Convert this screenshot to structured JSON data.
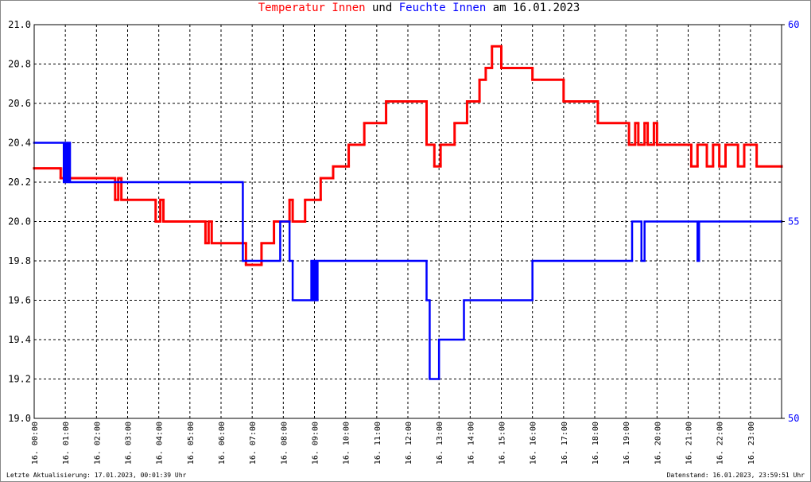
{
  "chart_data": {
    "type": "step-line",
    "title_connector": "und",
    "title_suffix": "am 16.01.2023",
    "update_note": "Letzte Aktualisierung: 17.01.2023, 00:01:39 Uhr",
    "data_note": "Datenstand: 16.01.2023, 23:59:51 Uhr",
    "grid": true,
    "xlim": [
      0,
      24
    ],
    "xticks": [
      {
        "value": 0,
        "label": "16. 00:00"
      },
      {
        "value": 1,
        "label": "16. 01:00"
      },
      {
        "value": 2,
        "label": "16. 02:00"
      },
      {
        "value": 3,
        "label": "16. 03:00"
      },
      {
        "value": 4,
        "label": "16. 04:00"
      },
      {
        "value": 5,
        "label": "16. 05:00"
      },
      {
        "value": 6,
        "label": "16. 06:00"
      },
      {
        "value": 7,
        "label": "16. 07:00"
      },
      {
        "value": 8,
        "label": "16. 08:00"
      },
      {
        "value": 9,
        "label": "16. 09:00"
      },
      {
        "value": 10,
        "label": "16. 10:00"
      },
      {
        "value": 11,
        "label": "16. 11:00"
      },
      {
        "value": 12,
        "label": "16. 12:00"
      },
      {
        "value": 13,
        "label": "16. 13:00"
      },
      {
        "value": 14,
        "label": "16. 14:00"
      },
      {
        "value": 15,
        "label": "16. 15:00"
      },
      {
        "value": 16,
        "label": "16. 16:00"
      },
      {
        "value": 17,
        "label": "16. 17:00"
      },
      {
        "value": 18,
        "label": "16. 18:00"
      },
      {
        "value": 19,
        "label": "16. 19:00"
      },
      {
        "value": 20,
        "label": "16. 20:00"
      },
      {
        "value": 21,
        "label": "16. 21:00"
      },
      {
        "value": 22,
        "label": "16. 22:00"
      },
      {
        "value": 23,
        "label": "16. 23:00"
      }
    ],
    "ylim": [
      19,
      21
    ],
    "yticks": [
      {
        "value": 19,
        "label": "19.0"
      },
      19.2,
      19.4,
      19.6,
      19.8,
      {
        "value": 20,
        "label": "20.0"
      },
      20.2,
      20.4,
      20.6,
      20.8,
      {
        "value": 21,
        "label": "21.0"
      }
    ],
    "y2lim": [
      50,
      60
    ],
    "y2ticks": [
      50,
      55,
      60
    ],
    "series": [
      {
        "name": "Temperatur Innen",
        "color": "#ff0000",
        "x": [
          0,
          0.85,
          0.95,
          1.05,
          2.6,
          2.7,
          2.8,
          3.9,
          4.05,
          4.15,
          5.5,
          5.6,
          5.7,
          6.8,
          7.3,
          7.7,
          8.2,
          8.3,
          8.7,
          9.2,
          9.6,
          10.1,
          10.6,
          11.3,
          12.6,
          12.85,
          13.05,
          13.5,
          13.9,
          14.3,
          14.5,
          14.7,
          15.0,
          16.0,
          17.0,
          18.1,
          19.1,
          19.3,
          19.4,
          19.6,
          19.7,
          19.9,
          20.0,
          21.1,
          21.3,
          21.6,
          21.8,
          22.0,
          22.2,
          22.6,
          22.8,
          23.2,
          24
        ],
        "values": [
          20.27,
          20.22,
          20.27,
          20.22,
          20.11,
          20.22,
          20.11,
          20.0,
          20.11,
          20.0,
          19.89,
          20.0,
          19.89,
          19.78,
          19.89,
          20.0,
          20.11,
          20.0,
          20.11,
          20.22,
          20.28,
          20.39,
          20.5,
          20.61,
          20.39,
          20.28,
          20.39,
          20.5,
          20.61,
          20.72,
          20.78,
          20.89,
          20.78,
          20.72,
          20.61,
          20.5,
          20.39,
          20.5,
          20.39,
          20.5,
          20.39,
          20.5,
          20.39,
          20.28,
          20.39,
          20.28,
          20.39,
          20.28,
          20.39,
          20.28,
          20.39,
          20.28,
          20.28
        ]
      },
      {
        "name": "Feuchte Innen",
        "color": "#0000ff",
        "axis": "y2",
        "x": [
          0,
          0.95,
          1.0,
          1.05,
          1.1,
          1.15,
          6.7,
          7.9,
          8.2,
          8.3,
          8.9,
          8.95,
          9.0,
          9.05,
          9.1,
          12.6,
          12.7,
          13.0,
          13.8,
          16.0,
          19.2,
          19.5,
          19.6,
          21.3,
          21.35,
          24
        ],
        "values": [
          57,
          56,
          57,
          56,
          57,
          56,
          54,
          55,
          54,
          53,
          54,
          53,
          54,
          53,
          54,
          53,
          51,
          52,
          53,
          54,
          55,
          54,
          55,
          54,
          55,
          55
        ]
      }
    ]
  }
}
